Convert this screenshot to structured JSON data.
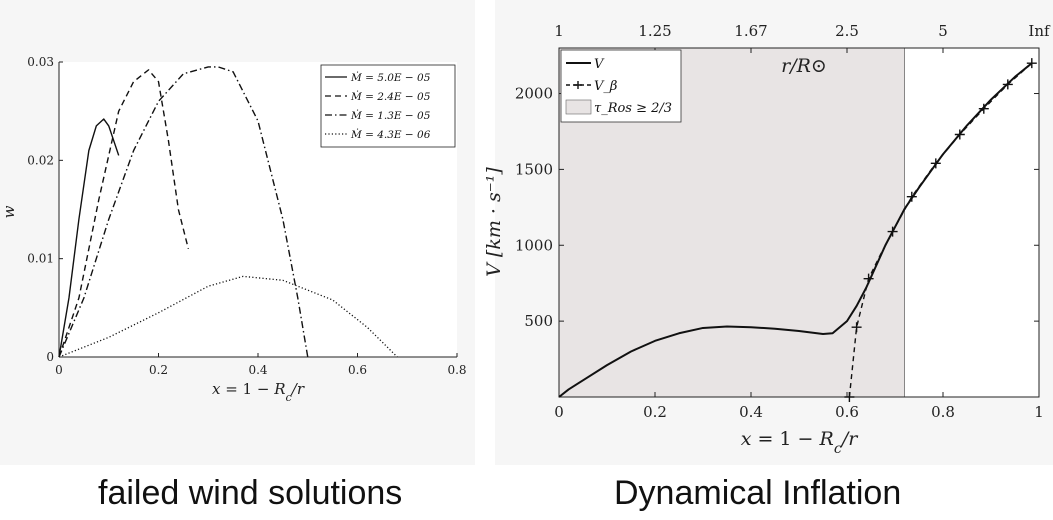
{
  "captions": {
    "left": "failed wind solutions",
    "right": "Dynamical Inflation"
  },
  "chart_data": [
    {
      "type": "line",
      "title": "",
      "xlabel": "x = 1 − R_c/r",
      "xlabel_parts": [
        "x",
        " = 1 − ",
        "R",
        "c",
        "/r"
      ],
      "ylabel": "w",
      "xlim": [
        0,
        0.8
      ],
      "ylim": [
        0,
        0.03
      ],
      "xticks": [
        0,
        0.2,
        0.4,
        0.6,
        0.8
      ],
      "xtick_labels": [
        "0",
        "0.2",
        "0.4",
        "0.6",
        "0.8"
      ],
      "yticks": [
        0,
        0.01,
        0.02,
        0.03
      ],
      "ytick_labels": [
        "0",
        "0.01",
        "0.02",
        "0.03"
      ],
      "legend_position": "top-right",
      "series": [
        {
          "name": "Ṁ = 5.0E − 05",
          "dash": "solid",
          "x": [
            0.0,
            0.02,
            0.04,
            0.06,
            0.075,
            0.09,
            0.1,
            0.11,
            0.12
          ],
          "y": [
            0.0,
            0.006,
            0.014,
            0.021,
            0.0235,
            0.0242,
            0.0235,
            0.022,
            0.0205
          ]
        },
        {
          "name": "Ṁ = 2.4E − 05",
          "dash": "dashed",
          "x": [
            0.0,
            0.04,
            0.08,
            0.12,
            0.15,
            0.18,
            0.2,
            0.22,
            0.24,
            0.26
          ],
          "y": [
            0.0,
            0.006,
            0.016,
            0.025,
            0.028,
            0.0292,
            0.028,
            0.022,
            0.015,
            0.011
          ]
        },
        {
          "name": "Ṁ = 1.3E − 05",
          "dash": "dashdot",
          "x": [
            0.0,
            0.05,
            0.1,
            0.15,
            0.2,
            0.25,
            0.3,
            0.32,
            0.35,
            0.4,
            0.45,
            0.48,
            0.5
          ],
          "y": [
            0.0,
            0.006,
            0.014,
            0.021,
            0.026,
            0.0288,
            0.0295,
            0.0295,
            0.029,
            0.024,
            0.014,
            0.006,
            0.0
          ]
        },
        {
          "name": "Ṁ = 4.3E − 06",
          "dash": "dotted",
          "x": [
            0.0,
            0.1,
            0.2,
            0.3,
            0.37,
            0.45,
            0.55,
            0.62,
            0.68
          ],
          "y": [
            0.0,
            0.002,
            0.0045,
            0.0072,
            0.0082,
            0.0078,
            0.0058,
            0.003,
            0.0
          ]
        }
      ]
    },
    {
      "type": "line",
      "title": "",
      "xlabel": "x = 1 − R_c/r",
      "xlabel_parts": [
        "x",
        " = 1 − ",
        "R",
        "c",
        "/r"
      ],
      "ylabel": "V [km · s⁻¹]",
      "x2label": "r/R⊙",
      "xlim": [
        0,
        1
      ],
      "ylim": [
        0,
        2300
      ],
      "xticks": [
        0,
        0.2,
        0.4,
        0.6,
        0.8,
        1
      ],
      "xtick_labels": [
        "0",
        "0.2",
        "0.4",
        "0.6",
        "0.8",
        "1"
      ],
      "yticks": [
        500,
        1000,
        1500,
        2000
      ],
      "ytick_labels": [
        "500",
        "1000",
        "1500",
        "2000"
      ],
      "x2ticks": [
        0,
        0.2,
        0.4,
        0.6,
        0.8,
        1
      ],
      "x2tick_labels": [
        "1",
        "1.25",
        "1.67",
        "2.5",
        "5",
        "Inf"
      ],
      "legend_position": "top-left",
      "shaded_region": {
        "label": "τ_Ros ≥ 2/3",
        "xlim": [
          0,
          0.72
        ],
        "color": "#e8e4e4"
      },
      "series": [
        {
          "name": "V",
          "dash": "solid",
          "x": [
            0.0,
            0.02,
            0.05,
            0.1,
            0.15,
            0.2,
            0.25,
            0.3,
            0.35,
            0.4,
            0.45,
            0.5,
            0.55,
            0.57,
            0.6,
            0.62,
            0.64,
            0.66,
            0.68,
            0.7,
            0.72,
            0.75,
            0.8,
            0.85,
            0.9,
            0.95,
            0.985
          ],
          "y": [
            0,
            50,
            110,
            210,
            300,
            370,
            420,
            455,
            465,
            460,
            450,
            435,
            415,
            420,
            500,
            600,
            720,
            860,
            1000,
            1120,
            1240,
            1380,
            1600,
            1790,
            1960,
            2110,
            2200
          ]
        },
        {
          "name": "V_β",
          "dash": "dashed-plus",
          "x": [
            0.605,
            0.62,
            0.645,
            0.67,
            0.695,
            0.735,
            0.785,
            0.835,
            0.885,
            0.935,
            0.985
          ],
          "y": [
            0,
            460,
            780,
            940,
            1090,
            1320,
            1540,
            1730,
            1900,
            2060,
            2200
          ],
          "markers": [
            0.605,
            0.62,
            0.645,
            0.695,
            0.735,
            0.785,
            0.835,
            0.885,
            0.935,
            0.985
          ]
        }
      ],
      "legend": [
        "V",
        "V_β",
        "τ_Ros ≥ 2/3"
      ]
    }
  ]
}
